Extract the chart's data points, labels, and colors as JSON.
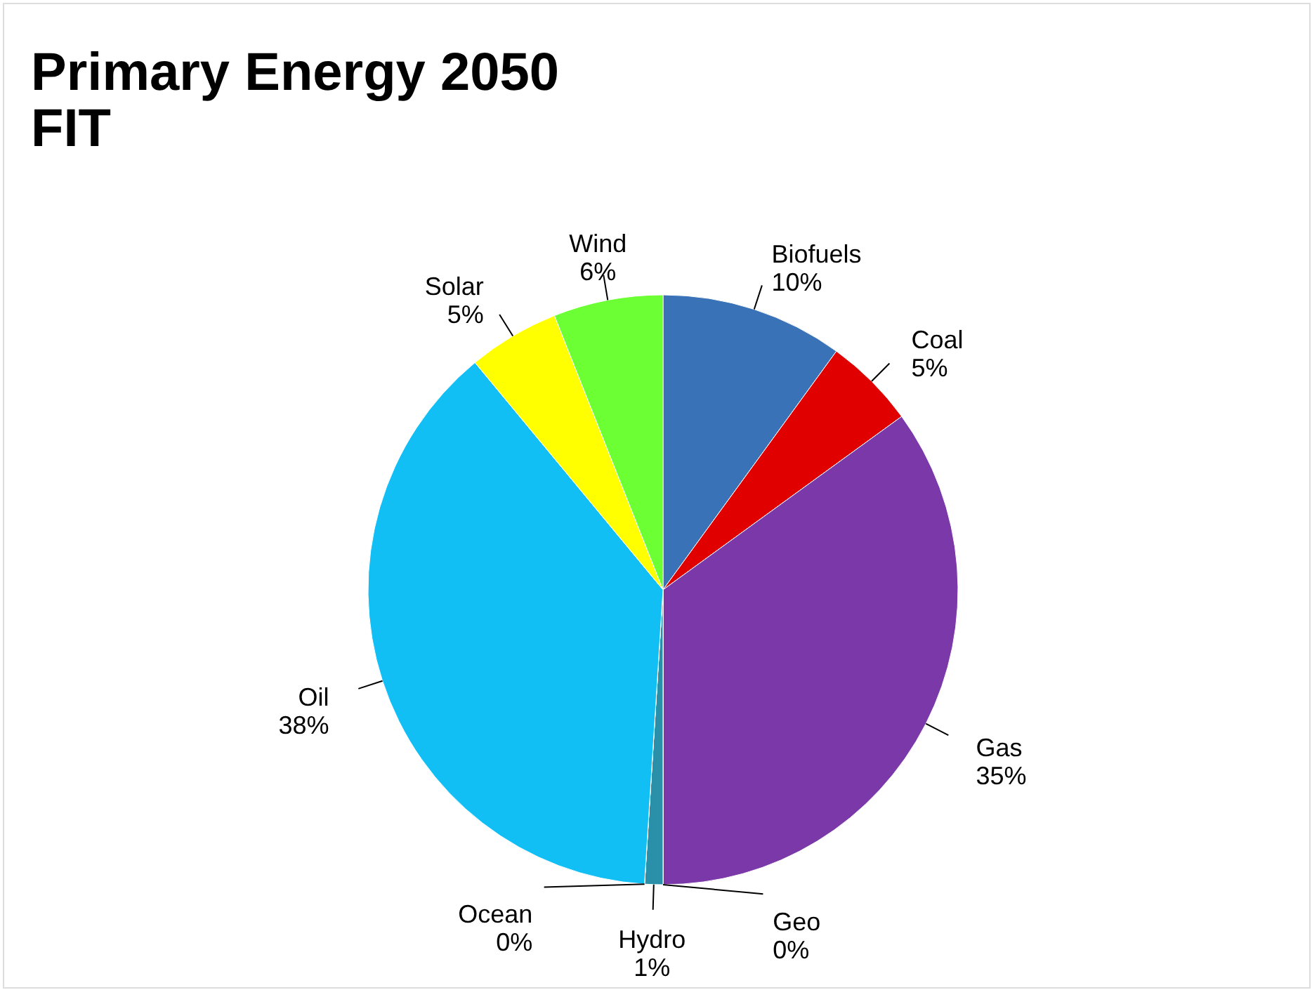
{
  "chart_data": {
    "type": "pie",
    "title": "Primary Energy 2050",
    "subtitle": "FIT",
    "categories": [
      "Biofuels",
      "Coal",
      "Gas",
      "Geo",
      "Hydro",
      "Ocean",
      "Oil",
      "Solar",
      "Wind"
    ],
    "values": [
      10,
      5,
      35,
      0,
      1,
      0,
      38,
      5,
      6
    ],
    "value_labels": [
      "10%",
      "5%",
      "35%",
      "0%",
      "1%",
      "0%",
      "38%",
      "5%",
      "6%"
    ],
    "colors": [
      "#3a72b8",
      "#e00000",
      "#7a38a8",
      "#8c8c8c",
      "#2a8fa8",
      "#c0601e",
      "#12bff5",
      "#ffff00",
      "#6cff33"
    ],
    "legend": false
  }
}
